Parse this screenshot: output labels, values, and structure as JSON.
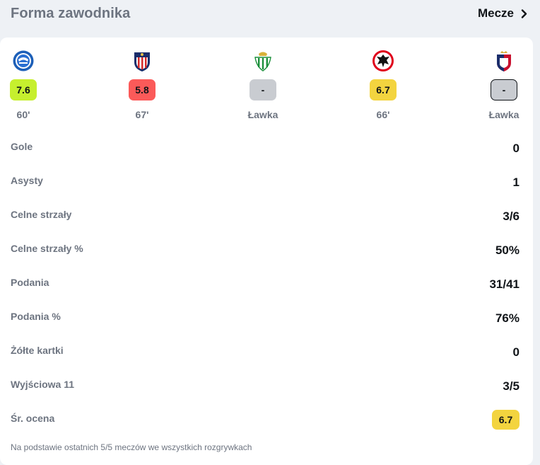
{
  "header": {
    "title": "Forma zawodnika",
    "matches_link": "Mecze"
  },
  "matches": [
    {
      "team_icon": "alaves-crest-icon",
      "rating": "7.6",
      "rating_color": "#c6ef2e",
      "minutes": "60'"
    },
    {
      "team_icon": "atletico-madrid-crest-icon",
      "rating": "5.8",
      "rating_color": "#fb5a59",
      "minutes": "67'"
    },
    {
      "team_icon": "real-betis-crest-icon",
      "rating": "-",
      "rating_color": "#c9ccd1",
      "minutes": "Ławka"
    },
    {
      "team_icon": "eintracht-frankfurt-crest-icon",
      "rating": "6.7",
      "rating_color": "#f3d43f",
      "minutes": "66'"
    },
    {
      "team_icon": "osasuna-crest-icon",
      "rating": "-",
      "rating_color": "#c9ccd1",
      "minutes": "Ławka"
    }
  ],
  "stats": [
    {
      "label": "Gole",
      "value": "0"
    },
    {
      "label": "Asysty",
      "value": "1"
    },
    {
      "label": "Celne strzały",
      "value": "3/6"
    },
    {
      "label": "Celne strzały %",
      "value": "50%"
    },
    {
      "label": "Podania",
      "value": "31/41"
    },
    {
      "label": "Podania %",
      "value": "76%"
    },
    {
      "label": "Żółte kartki",
      "value": "0"
    },
    {
      "label": "Wyjściowa 11",
      "value": "3/5"
    }
  ],
  "average": {
    "label": "Śr. ocena",
    "value": "6.7",
    "color": "#f3d43f"
  },
  "footnote": "Na podstawie ostatnich 5/5 meczów we wszystkich rozgrywkach",
  "colors": {
    "text_primary": "#101418",
    "text_secondary": "#6d7480",
    "background": "#eef1f5",
    "card": "#ffffff"
  }
}
